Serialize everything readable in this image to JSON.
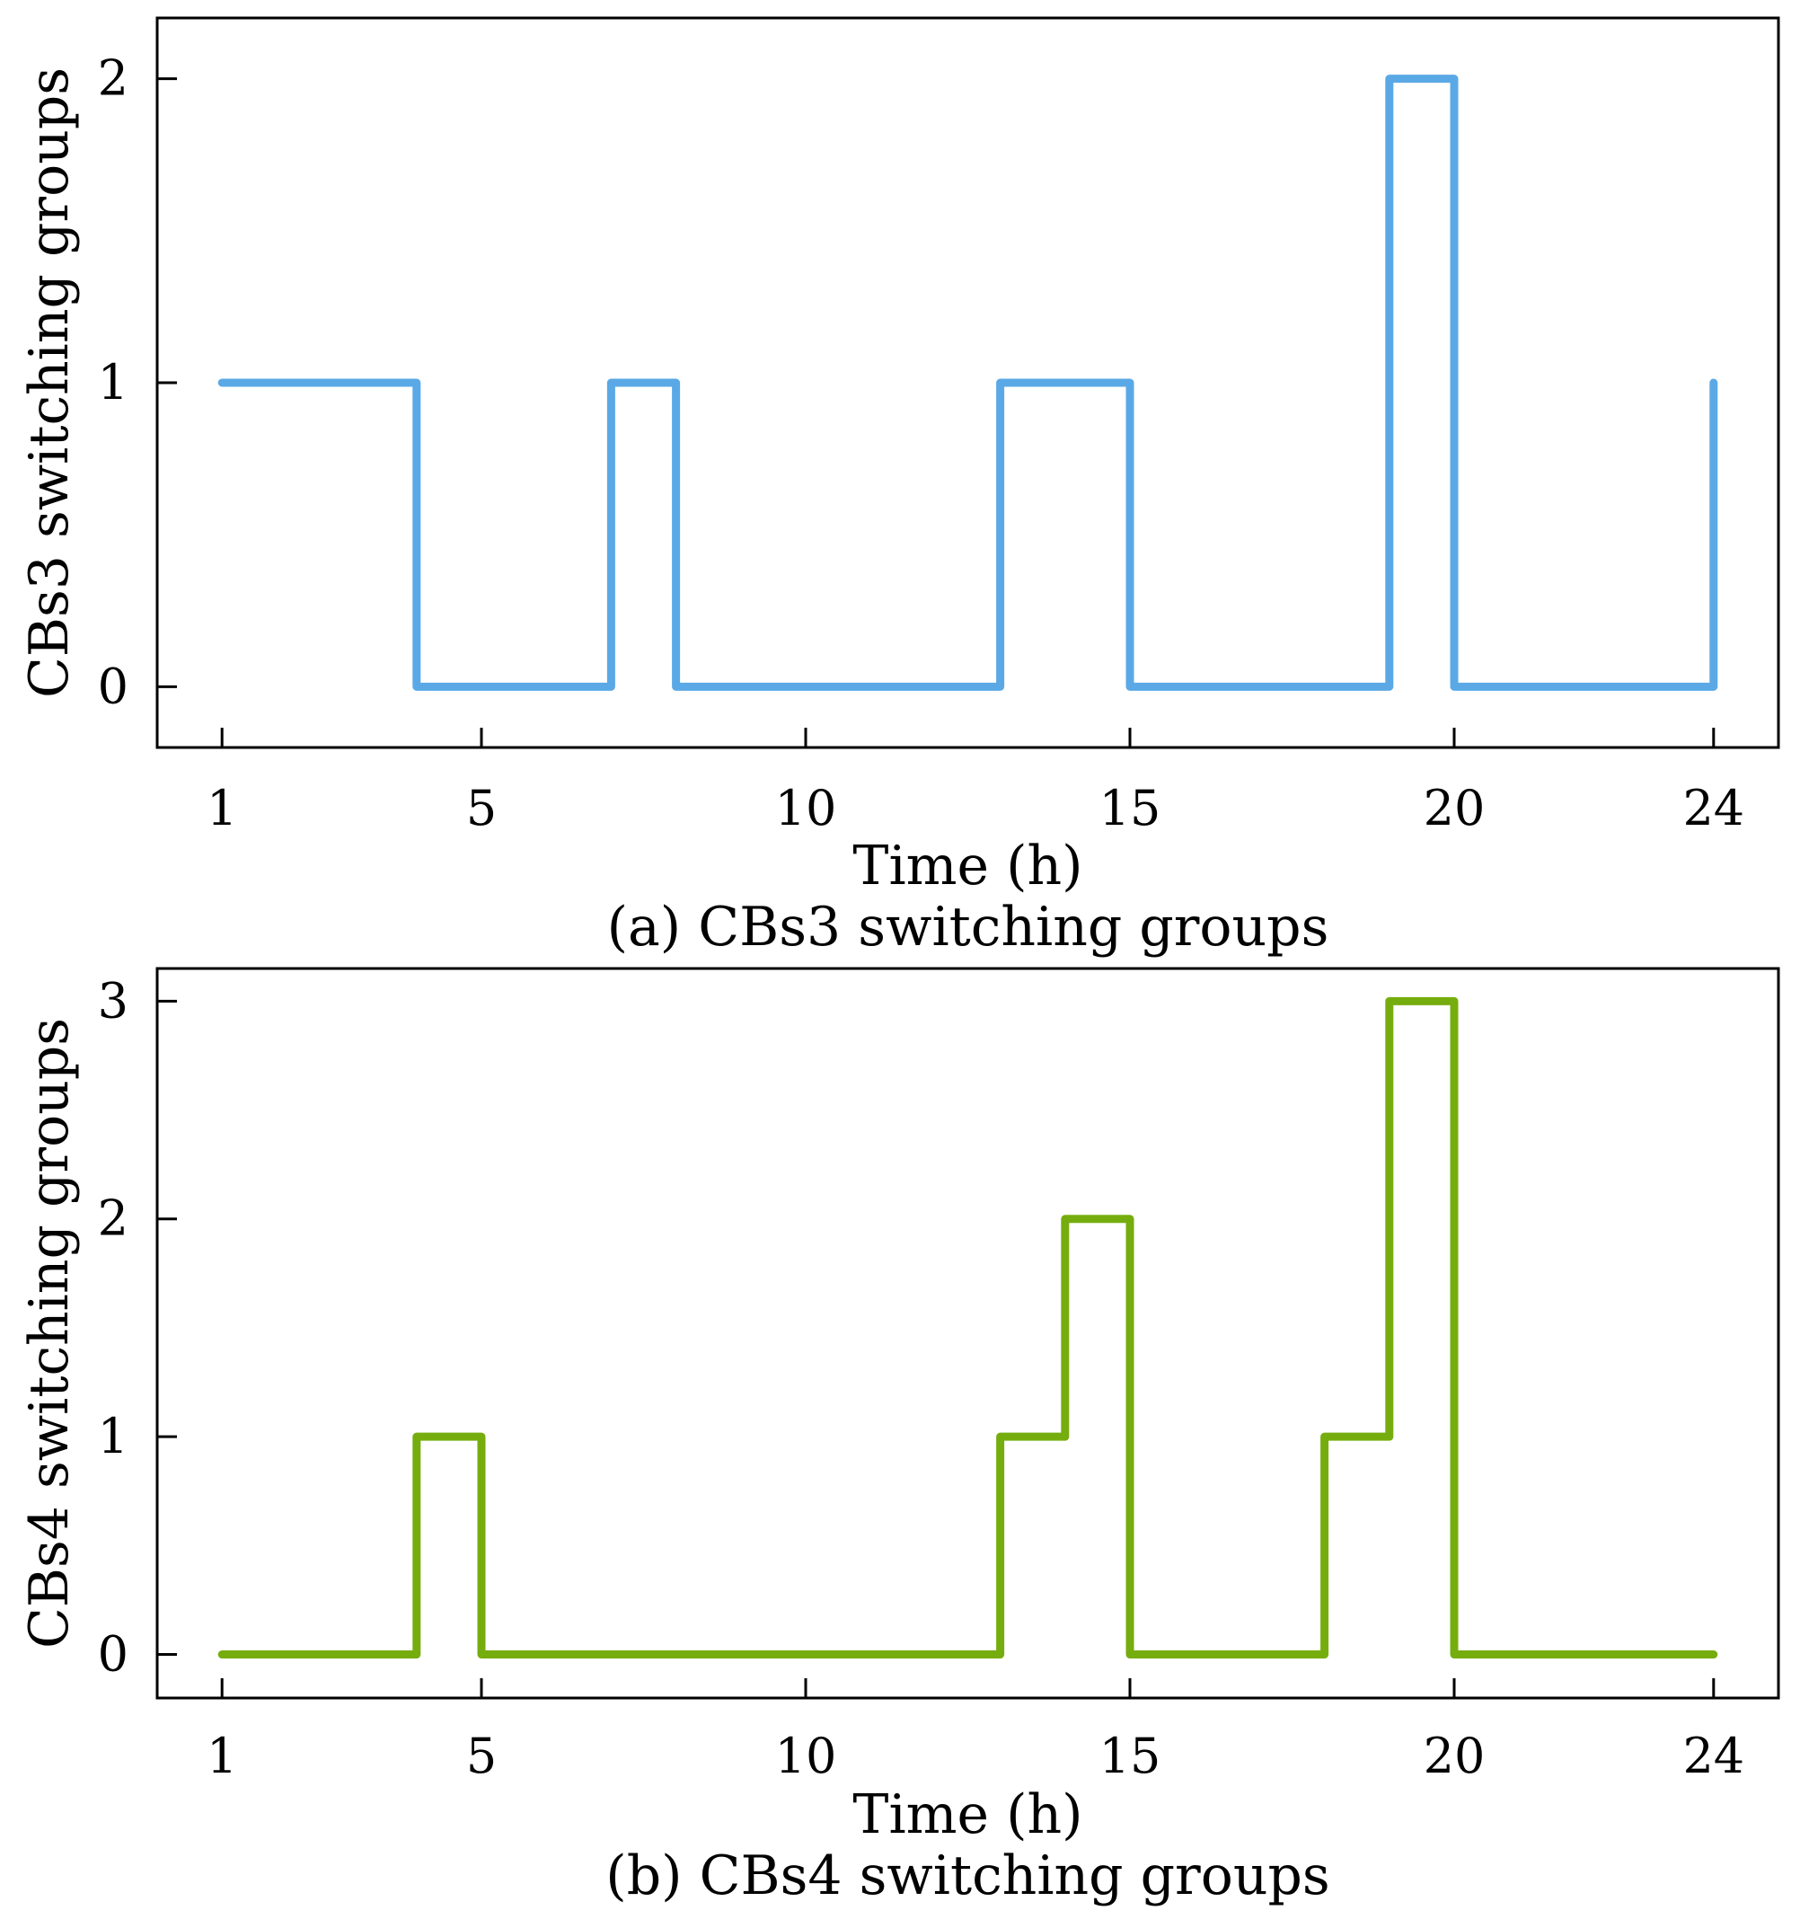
{
  "chart_data": [
    {
      "type": "line",
      "step": "post",
      "caption": "(a) CBs3 switching groups",
      "xlabel": "Time (h)",
      "ylabel": "CBs3 switching groups",
      "x_ticks": [
        1,
        5,
        10,
        15,
        20,
        24
      ],
      "y_ticks": [
        0,
        1,
        2
      ],
      "xlim": [
        0,
        25
      ],
      "ylim": [
        -0.2,
        2.2
      ],
      "color": "#5AA9E6",
      "series": [
        {
          "x": [
            1,
            2,
            3,
            4,
            5,
            6,
            7,
            8,
            9,
            10,
            11,
            12,
            13,
            14,
            15,
            16,
            17,
            18,
            19,
            20,
            21,
            22,
            23,
            24
          ],
          "values": [
            1,
            1,
            1,
            0,
            0,
            0,
            1,
            0,
            0,
            0,
            0,
            0,
            1,
            1,
            0,
            0,
            0,
            0,
            2,
            0,
            0,
            0,
            0,
            1
          ]
        }
      ]
    },
    {
      "type": "line",
      "step": "post",
      "caption": "(b) CBs4 switching groups",
      "xlabel": "Time (h)",
      "ylabel": "CBs4 switching groups",
      "x_ticks": [
        1,
        5,
        10,
        15,
        20,
        24
      ],
      "y_ticks": [
        0,
        1,
        2,
        3
      ],
      "xlim": [
        0,
        25
      ],
      "ylim": [
        -0.2,
        3.15
      ],
      "color": "#76AD0E",
      "series": [
        {
          "x": [
            1,
            2,
            3,
            4,
            5,
            6,
            7,
            8,
            9,
            10,
            11,
            12,
            13,
            14,
            15,
            16,
            17,
            18,
            19,
            20,
            21,
            22,
            23,
            24
          ],
          "values": [
            0,
            0,
            0,
            1,
            0,
            0,
            0,
            0,
            0,
            0,
            0,
            0,
            1,
            2,
            0,
            0,
            0,
            1,
            3,
            0,
            0,
            0,
            0,
            0
          ]
        }
      ]
    }
  ]
}
